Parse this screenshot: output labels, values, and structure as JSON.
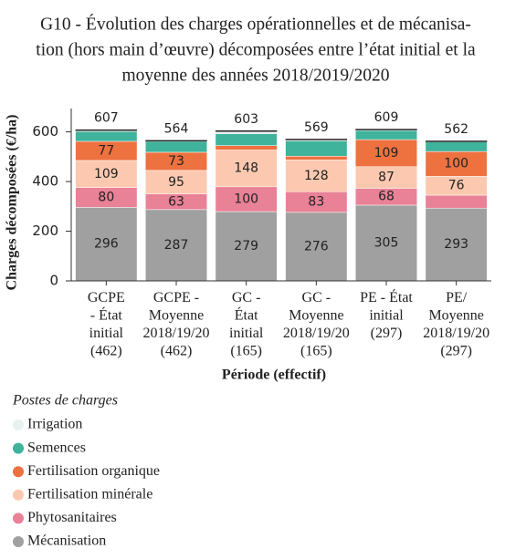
{
  "chart_data": {
    "type": "stacked_bar",
    "title": [
      "G10 - Évolution des charges opérationnelles et de mécanisa-",
      "tion (hors main d’œuvre) décomposées entre l’état initial et la",
      "moyenne des années 2018/2019/2020"
    ],
    "x_label": "Période (effectif)",
    "y_label": "Charges décomposées (€/ha)",
    "legend_title": "Postes de charges",
    "categories": [
      [
        "GCPE",
        "- État",
        "initial",
        "(462)"
      ],
      [
        "GCPE -",
        "Moyenne",
        "2018/19/20",
        "(462)"
      ],
      [
        "GC -",
        "État",
        "initial",
        "(165)"
      ],
      [
        "GC -",
        "Moyenne",
        "2018/19/20",
        "(165)"
      ],
      [
        "PE - État",
        "initial",
        "(297)"
      ],
      [
        "PE/",
        "Moyenne",
        "2018/19/20",
        "(297)"
      ]
    ],
    "series": [
      {
        "name": "Mécanisation",
        "color": "#a0a0a0",
        "values": [
          296,
          287,
          279,
          276,
          305,
          293
        ]
      },
      {
        "name": "Phytosanitaires",
        "color": "#e98197",
        "values": [
          80,
          63,
          100,
          83,
          68,
          52
        ]
      },
      {
        "name": "Fertilisation minérale",
        "color": "#fcc9b0",
        "values": [
          109,
          95,
          148,
          128,
          87,
          76
        ]
      },
      {
        "name": "Fertilisation organique",
        "color": "#ee7140",
        "values": [
          77,
          73,
          18,
          15,
          109,
          100
        ]
      },
      {
        "name": "Semences",
        "color": "#3fb39c",
        "values": [
          40,
          44,
          48,
          62,
          36,
          39
        ]
      },
      {
        "name": "Irrigation",
        "color": "#e8f1f0",
        "values": [
          5,
          2,
          10,
          5,
          4,
          2
        ]
      }
    ],
    "totals": [
      607,
      564,
      603,
      569,
      609,
      562
    ],
    "ylim": [
      0,
      650
    ],
    "yticks": [
      0,
      200,
      400,
      600
    ]
  }
}
